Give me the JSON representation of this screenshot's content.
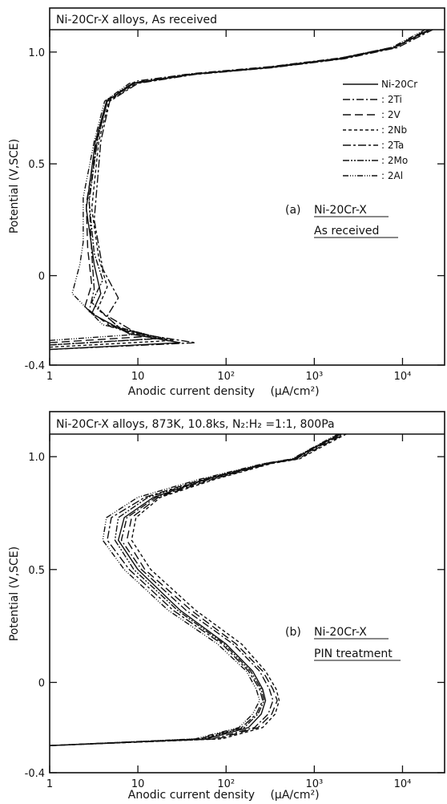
{
  "chart_data": [
    {
      "type": "line",
      "title": "Ni-20Cr-X alloys, As received",
      "annotation": {
        "line1": "(a)",
        "line2": "Ni-20Cr-X",
        "line3": "As received"
      },
      "xlabel": "Anodic current density",
      "xunit": "(μA/cm²)",
      "ylabel": "Potential  (V,SCE)",
      "xscale": "log",
      "xlim": [
        1,
        30000
      ],
      "ylim": [
        -0.4,
        1.1
      ],
      "xticks": [
        "1",
        "10",
        "10²",
        "10³",
        "10⁴"
      ],
      "yticks": [
        "-0.4",
        "0",
        "0.5",
        "1.0"
      ],
      "legend_position": "top-right",
      "series": [
        {
          "name": "Ni-20Cr",
          "dash": "",
          "points": [
            [
              1,
              -0.33
            ],
            [
              30,
              -0.3
            ],
            [
              8,
              -0.26
            ],
            [
              3,
              -0.17
            ],
            [
              3.8,
              -0.08
            ],
            [
              3.2,
              0.05
            ],
            [
              2.6,
              0.3
            ],
            [
              3.3,
              0.6
            ],
            [
              4.4,
              0.78
            ],
            [
              9,
              0.86
            ],
            [
              40,
              0.9
            ],
            [
              300,
              0.93
            ],
            [
              2000,
              0.97
            ],
            [
              8000,
              1.02
            ],
            [
              20000,
              1.1
            ]
          ]
        },
        {
          "name": "2Ti",
          "dash": "9 3 2 3",
          "points": [
            [
              1,
              -0.31
            ],
            [
              20,
              -0.28
            ],
            [
              6,
              -0.24
            ],
            [
              2.8,
              -0.16
            ],
            [
              3.2,
              -0.06
            ],
            [
              3,
              0.1
            ],
            [
              2.8,
              0.35
            ],
            [
              3.5,
              0.62
            ],
            [
              4.6,
              0.79
            ],
            [
              9.5,
              0.87
            ],
            [
              45,
              0.905
            ],
            [
              320,
              0.935
            ],
            [
              2100,
              0.975
            ],
            [
              8500,
              1.025
            ],
            [
              21000,
              1.1
            ]
          ]
        },
        {
          "name": "2V",
          "dash": "10 5",
          "points": [
            [
              1,
              -0.3
            ],
            [
              15,
              -0.27
            ],
            [
              5,
              -0.23
            ],
            [
              2.5,
              -0.14
            ],
            [
              3,
              -0.04
            ],
            [
              2.7,
              0.12
            ],
            [
              2.6,
              0.32
            ],
            [
              3.4,
              0.6
            ],
            [
              4.5,
              0.78
            ],
            [
              8.5,
              0.86
            ],
            [
              38,
              0.9
            ],
            [
              280,
              0.93
            ],
            [
              1900,
              0.97
            ],
            [
              7800,
              1.02
            ],
            [
              19000,
              1.1
            ]
          ]
        },
        {
          "name": "2Nb",
          "dash": "4 3",
          "points": [
            [
              1,
              -0.32
            ],
            [
              25,
              -0.29
            ],
            [
              7,
              -0.25
            ],
            [
              3.5,
              -0.15
            ],
            [
              4.5,
              -0.05
            ],
            [
              3.6,
              0.08
            ],
            [
              3,
              0.3
            ],
            [
              3.6,
              0.6
            ],
            [
              4.7,
              0.78
            ],
            [
              9.5,
              0.86
            ],
            [
              42,
              0.9
            ],
            [
              310,
              0.93
            ],
            [
              2050,
              0.97
            ],
            [
              8200,
              1.02
            ],
            [
              20500,
              1.1
            ]
          ]
        },
        {
          "name": "2Ta",
          "dash": "10 3 3 3",
          "points": [
            [
              1,
              -0.33
            ],
            [
              45,
              -0.3
            ],
            [
              10,
              -0.26
            ],
            [
              4.5,
              -0.18
            ],
            [
              6,
              -0.1
            ],
            [
              4,
              0.03
            ],
            [
              3.2,
              0.25
            ],
            [
              3.8,
              0.6
            ],
            [
              4.8,
              0.78
            ],
            [
              10,
              0.86
            ],
            [
              45,
              0.9
            ],
            [
              330,
              0.93
            ],
            [
              2200,
              0.97
            ],
            [
              8800,
              1.02
            ],
            [
              22000,
              1.1
            ]
          ]
        },
        {
          "name": "2Mo",
          "dash": "8 2 2 2 2 2",
          "points": [
            [
              1,
              -0.31
            ],
            [
              18,
              -0.28
            ],
            [
              6,
              -0.23
            ],
            [
              3,
              -0.12
            ],
            [
              4,
              -0.02
            ],
            [
              3.2,
              0.1
            ],
            [
              2.8,
              0.33
            ],
            [
              3.5,
              0.61
            ],
            [
              4.5,
              0.78
            ],
            [
              9,
              0.86
            ],
            [
              40,
              0.9
            ],
            [
              300,
              0.93
            ],
            [
              2000,
              0.97
            ],
            [
              8000,
              1.02
            ],
            [
              20000,
              1.1
            ]
          ]
        },
        {
          "name": "2Al",
          "dash": "7 2 1 2 1 2 1 2",
          "points": [
            [
              1,
              -0.29
            ],
            [
              12,
              -0.26
            ],
            [
              4,
              -0.22
            ],
            [
              1.8,
              -0.08
            ],
            [
              2.2,
              0.05
            ],
            [
              2.4,
              0.15
            ],
            [
              2.4,
              0.35
            ],
            [
              3.2,
              0.6
            ],
            [
              4.2,
              0.78
            ],
            [
              8,
              0.86
            ],
            [
              35,
              0.9
            ],
            [
              260,
              0.93
            ],
            [
              1800,
              0.97
            ],
            [
              7500,
              1.02
            ],
            [
              18000,
              1.1
            ]
          ]
        }
      ]
    },
    {
      "type": "line",
      "title": "Ni-20Cr-X alloys, 873K, 10.8ks,  N₂:H₂ =1:1,  800Pa",
      "annotation": {
        "line1": "(b)",
        "line2": "Ni-20Cr-X",
        "line3": "PIN treatment"
      },
      "xlabel": "Anodic current density",
      "xunit": "(μA/cm²)",
      "ylabel": "Potential  (V,SCE)",
      "xscale": "log",
      "xlim": [
        1,
        30000
      ],
      "ylim": [
        -0.4,
        1.1
      ],
      "xticks": [
        "1",
        "10",
        "10²",
        "10³",
        "10⁴"
      ],
      "yticks": [
        "-0.4",
        "0",
        "0.5",
        "1.0"
      ],
      "series": [
        {
          "name": "Ni-20Cr",
          "dash": "",
          "points": [
            [
              1,
              -0.28
            ],
            [
              60,
              -0.25
            ],
            [
              180,
              -0.2
            ],
            [
              250,
              -0.14
            ],
            [
              280,
              -0.08
            ],
            [
              260,
              -0.03
            ],
            [
              200,
              0.05
            ],
            [
              100,
              0.17
            ],
            [
              30,
              0.32
            ],
            [
              10,
              0.5
            ],
            [
              6,
              0.63
            ],
            [
              7,
              0.73
            ],
            [
              15,
              0.82
            ],
            [
              60,
              0.9
            ],
            [
              300,
              0.97
            ],
            [
              600,
              0.99
            ],
            [
              900,
              1.03
            ],
            [
              2000,
              1.1
            ]
          ]
        },
        {
          "name": "2Ti",
          "dash": "9 3 2 3",
          "points": [
            [
              1,
              -0.28
            ],
            [
              70,
              -0.25
            ],
            [
              210,
              -0.2
            ],
            [
              300,
              -0.14
            ],
            [
              340,
              -0.08
            ],
            [
              310,
              -0.03
            ],
            [
              240,
              0.05
            ],
            [
              120,
              0.17
            ],
            [
              35,
              0.32
            ],
            [
              11,
              0.5
            ],
            [
              6.5,
              0.63
            ],
            [
              7.5,
              0.73
            ],
            [
              16,
              0.82
            ],
            [
              65,
              0.9
            ],
            [
              310,
              0.97
            ],
            [
              620,
              0.99
            ],
            [
              950,
              1.03
            ],
            [
              2100,
              1.1
            ]
          ]
        },
        {
          "name": "2V",
          "dash": "10 5",
          "points": [
            [
              1,
              -0.28
            ],
            [
              80,
              -0.25
            ],
            [
              230,
              -0.2
            ],
            [
              330,
              -0.14
            ],
            [
              380,
              -0.08
            ],
            [
              340,
              -0.03
            ],
            [
              260,
              0.05
            ],
            [
              130,
              0.17
            ],
            [
              40,
              0.32
            ],
            [
              12,
              0.5
            ],
            [
              7.5,
              0.63
            ],
            [
              8.5,
              0.73
            ],
            [
              17,
              0.82
            ],
            [
              70,
              0.9
            ],
            [
              320,
              0.97
            ],
            [
              650,
              0.99
            ],
            [
              1000,
              1.03
            ],
            [
              2200,
              1.1
            ]
          ]
        },
        {
          "name": "2Nb",
          "dash": "4 3",
          "points": [
            [
              1,
              -0.28
            ],
            [
              90,
              -0.25
            ],
            [
              260,
              -0.2
            ],
            [
              360,
              -0.14
            ],
            [
              400,
              -0.08
            ],
            [
              370,
              -0.03
            ],
            [
              280,
              0.05
            ],
            [
              150,
              0.17
            ],
            [
              45,
              0.32
            ],
            [
              14,
              0.5
            ],
            [
              8.5,
              0.63
            ],
            [
              9.5,
              0.73
            ],
            [
              18,
              0.82
            ],
            [
              75,
              0.9
            ],
            [
              330,
              0.97
            ],
            [
              680,
              0.99
            ],
            [
              1050,
              1.03
            ],
            [
              2300,
              1.1
            ]
          ]
        },
        {
          "name": "2Ta",
          "dash": "10 3 3 3",
          "points": [
            [
              1,
              -0.28
            ],
            [
              50,
              -0.25
            ],
            [
              150,
              -0.2
            ],
            [
              220,
              -0.14
            ],
            [
              260,
              -0.08
            ],
            [
              240,
              -0.03
            ],
            [
              180,
              0.05
            ],
            [
              90,
              0.17
            ],
            [
              25,
              0.32
            ],
            [
              8,
              0.5
            ],
            [
              4.5,
              0.63
            ],
            [
              5,
              0.73
            ],
            [
              12,
              0.82
            ],
            [
              55,
              0.9
            ],
            [
              280,
              0.97
            ],
            [
              580,
              0.99
            ],
            [
              880,
              1.03
            ],
            [
              1900,
              1.1
            ]
          ]
        },
        {
          "name": "2Mo",
          "dash": "8 2 2 2 2 2",
          "points": [
            [
              1,
              -0.28
            ],
            [
              55,
              -0.25
            ],
            [
              160,
              -0.2
            ],
            [
              230,
              -0.14
            ],
            [
              270,
              -0.08
            ],
            [
              250,
              -0.03
            ],
            [
              190,
              0.05
            ],
            [
              95,
              0.17
            ],
            [
              28,
              0.32
            ],
            [
              9,
              0.5
            ],
            [
              5.5,
              0.63
            ],
            [
              6,
              0.73
            ],
            [
              13,
              0.82
            ],
            [
              58,
              0.9
            ],
            [
              290,
              0.97
            ],
            [
              590,
              0.99
            ],
            [
              890,
              1.03
            ],
            [
              1950,
              1.1
            ]
          ]
        },
        {
          "name": "2Al",
          "dash": "7 2 1 2 1 2 1 2",
          "points": [
            [
              1,
              -0.28
            ],
            [
              45,
              -0.25
            ],
            [
              140,
              -0.2
            ],
            [
              200,
              -0.14
            ],
            [
              240,
              -0.08
            ],
            [
              220,
              -0.03
            ],
            [
              170,
              0.05
            ],
            [
              80,
              0.17
            ],
            [
              22,
              0.32
            ],
            [
              7,
              0.5
            ],
            [
              4,
              0.63
            ],
            [
              4.4,
              0.73
            ],
            [
              10,
              0.82
            ],
            [
              50,
              0.9
            ],
            [
              270,
              0.97
            ],
            [
              560,
              0.99
            ],
            [
              860,
              1.03
            ],
            [
              1850,
              1.1
            ]
          ]
        }
      ]
    }
  ]
}
